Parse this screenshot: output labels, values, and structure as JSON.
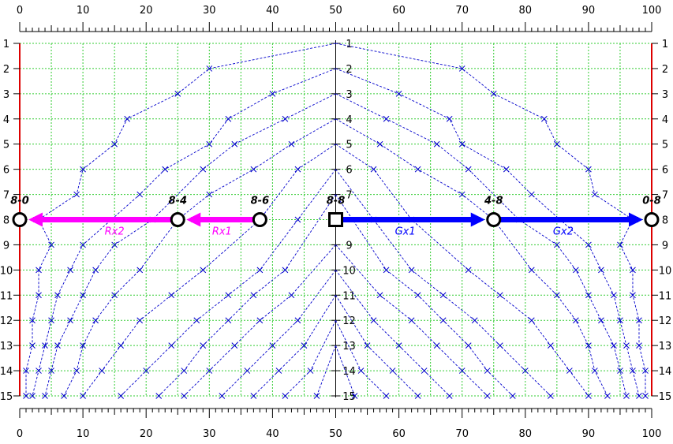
{
  "chart_data": {
    "type": "diagram",
    "x_axis": {
      "ticks": [
        0,
        10,
        20,
        30,
        40,
        50,
        60,
        70,
        80,
        90,
        100
      ],
      "range": [
        0,
        100
      ]
    },
    "y_axis": {
      "ticks": [
        1,
        2,
        3,
        4,
        5,
        6,
        7,
        8,
        9,
        10,
        11,
        12,
        13,
        14,
        15
      ],
      "range": [
        1,
        15
      ]
    },
    "grid": true,
    "colors": {
      "grid": "#33cc33",
      "curve": "#0000cc",
      "gx_arrow": "#0000ff",
      "rx_arrow": "#ff00ff",
      "boundary": "#dd0000",
      "node": "#000000"
    },
    "curves": [
      {
        "points": [
          [
            50,
            1
          ],
          [
            30,
            2
          ],
          [
            25,
            3
          ],
          [
            17,
            4
          ],
          [
            15,
            5
          ],
          [
            10,
            6
          ],
          [
            9,
            7
          ],
          [
            3,
            8
          ],
          [
            5,
            9
          ],
          [
            3,
            10
          ],
          [
            3,
            11
          ],
          [
            2,
            12
          ],
          [
            2,
            13
          ],
          [
            1,
            14
          ],
          [
            1,
            15
          ]
        ]
      },
      {
        "points": [
          [
            50,
            1
          ],
          [
            70,
            2
          ],
          [
            75,
            3
          ],
          [
            83,
            4
          ],
          [
            85,
            5
          ],
          [
            90,
            6
          ],
          [
            91,
            7
          ],
          [
            97,
            8
          ],
          [
            95,
            9
          ],
          [
            97,
            10
          ],
          [
            97,
            11
          ],
          [
            98,
            12
          ],
          [
            98,
            13
          ],
          [
            99,
            14
          ],
          [
            99,
            15
          ]
        ]
      },
      {
        "points": [
          [
            50,
            2
          ],
          [
            40,
            3
          ],
          [
            33,
            4
          ],
          [
            30,
            5
          ],
          [
            23,
            6
          ],
          [
            19,
            7
          ],
          [
            10,
            9
          ],
          [
            8,
            10
          ],
          [
            6,
            11
          ],
          [
            5,
            12
          ],
          [
            4,
            13
          ],
          [
            3,
            14
          ],
          [
            2,
            15
          ]
        ]
      },
      {
        "points": [
          [
            50,
            2
          ],
          [
            60,
            3
          ],
          [
            68,
            4
          ],
          [
            70,
            5
          ],
          [
            77,
            6
          ],
          [
            81,
            7
          ],
          [
            90,
            9
          ],
          [
            92,
            10
          ],
          [
            94,
            11
          ],
          [
            95,
            12
          ],
          [
            96,
            13
          ],
          [
            97,
            14
          ],
          [
            98,
            15
          ]
        ]
      },
      {
        "points": [
          [
            50,
            3
          ],
          [
            42,
            4
          ],
          [
            34,
            5
          ],
          [
            29,
            6
          ],
          [
            21,
            8
          ],
          [
            15,
            9
          ],
          [
            12,
            10
          ],
          [
            10,
            11
          ],
          [
            8,
            12
          ],
          [
            6,
            13
          ],
          [
            5,
            14
          ],
          [
            4,
            15
          ]
        ]
      },
      {
        "points": [
          [
            50,
            3
          ],
          [
            58,
            4
          ],
          [
            66,
            5
          ],
          [
            71,
            6
          ],
          [
            79,
            8
          ],
          [
            85,
            9
          ],
          [
            88,
            10
          ],
          [
            90,
            11
          ],
          [
            92,
            12
          ],
          [
            94,
            13
          ],
          [
            95,
            14
          ],
          [
            96,
            15
          ]
        ]
      },
      {
        "points": [
          [
            50,
            4
          ],
          [
            43,
            5
          ],
          [
            37,
            6
          ],
          [
            30,
            7
          ],
          [
            25,
            8
          ],
          [
            19,
            10
          ],
          [
            15,
            11
          ],
          [
            12,
            12
          ],
          [
            10,
            13
          ],
          [
            9,
            14
          ],
          [
            7,
            15
          ]
        ]
      },
      {
        "points": [
          [
            50,
            4
          ],
          [
            57,
            5
          ],
          [
            63,
            6
          ],
          [
            70,
            7
          ],
          [
            75,
            8
          ],
          [
            81,
            10
          ],
          [
            85,
            11
          ],
          [
            88,
            12
          ],
          [
            90,
            13
          ],
          [
            91,
            14
          ],
          [
            93,
            15
          ]
        ]
      },
      {
        "points": [
          [
            50,
            5
          ],
          [
            44,
            6
          ],
          [
            38,
            8
          ],
          [
            29,
            10
          ],
          [
            24,
            11
          ],
          [
            19,
            12
          ],
          [
            16,
            13
          ],
          [
            13,
            14
          ],
          [
            10,
            15
          ]
        ]
      },
      {
        "points": [
          [
            50,
            5
          ],
          [
            56,
            6
          ],
          [
            62,
            8
          ],
          [
            71,
            10
          ],
          [
            76,
            11
          ],
          [
            81,
            12
          ],
          [
            84,
            13
          ],
          [
            87,
            14
          ],
          [
            90,
            15
          ]
        ]
      },
      {
        "points": [
          [
            50,
            6
          ],
          [
            44,
            8
          ],
          [
            38,
            10
          ],
          [
            33,
            11
          ],
          [
            28,
            12
          ],
          [
            24,
            13
          ],
          [
            20,
            14
          ],
          [
            16,
            15
          ]
        ]
      },
      {
        "points": [
          [
            50,
            6
          ],
          [
            56,
            8
          ],
          [
            62,
            10
          ],
          [
            67,
            11
          ],
          [
            72,
            12
          ],
          [
            76,
            13
          ],
          [
            80,
            14
          ],
          [
            84,
            15
          ]
        ]
      },
      {
        "points": [
          [
            50,
            7
          ],
          [
            42,
            10
          ],
          [
            37,
            11
          ],
          [
            33,
            12
          ],
          [
            29,
            13
          ],
          [
            26,
            14
          ],
          [
            22,
            15
          ]
        ]
      },
      {
        "points": [
          [
            50,
            7
          ],
          [
            58,
            10
          ],
          [
            63,
            11
          ],
          [
            67,
            12
          ],
          [
            71,
            13
          ],
          [
            74,
            14
          ],
          [
            78,
            15
          ]
        ]
      },
      {
        "points": [
          [
            50,
            9
          ],
          [
            43,
            11
          ],
          [
            38,
            12
          ],
          [
            34,
            13
          ],
          [
            30,
            14
          ],
          [
            26,
            15
          ]
        ]
      },
      {
        "points": [
          [
            50,
            9
          ],
          [
            57,
            11
          ],
          [
            62,
            12
          ],
          [
            66,
            13
          ],
          [
            70,
            14
          ],
          [
            74,
            15
          ]
        ]
      },
      {
        "points": [
          [
            50,
            10
          ],
          [
            44,
            12
          ],
          [
            40,
            13
          ],
          [
            36,
            14
          ],
          [
            32,
            15
          ]
        ]
      },
      {
        "points": [
          [
            50,
            10
          ],
          [
            56,
            12
          ],
          [
            60,
            13
          ],
          [
            64,
            14
          ],
          [
            68,
            15
          ]
        ]
      },
      {
        "points": [
          [
            50,
            11
          ],
          [
            45,
            13
          ],
          [
            41,
            14
          ],
          [
            37,
            15
          ]
        ]
      },
      {
        "points": [
          [
            50,
            11
          ],
          [
            55,
            13
          ],
          [
            59,
            14
          ],
          [
            63,
            15
          ]
        ]
      },
      {
        "points": [
          [
            50,
            12
          ],
          [
            46,
            14
          ],
          [
            42,
            15
          ]
        ]
      },
      {
        "points": [
          [
            50,
            12
          ],
          [
            54,
            14
          ],
          [
            58,
            15
          ]
        ]
      },
      {
        "points": [
          [
            50,
            13
          ],
          [
            47,
            15
          ]
        ]
      },
      {
        "points": [
          [
            50,
            13
          ],
          [
            53,
            15
          ]
        ]
      }
    ],
    "nodes": [
      {
        "label": "8-0",
        "x": 0,
        "y": 8,
        "shape": "circle"
      },
      {
        "label": "8-4",
        "x": 25,
        "y": 8,
        "shape": "circle"
      },
      {
        "label": "8-6",
        "x": 38,
        "y": 8,
        "shape": "circle"
      },
      {
        "label": "8-8",
        "x": 50,
        "y": 8,
        "shape": "square"
      },
      {
        "label": "4-8",
        "x": 75,
        "y": 8,
        "shape": "circle"
      },
      {
        "label": "0-8",
        "x": 100,
        "y": 8,
        "shape": "circle"
      }
    ],
    "arrows": [
      {
        "label": "Rx2",
        "from": 25,
        "to": 0,
        "y": 8,
        "color": "#ff00ff",
        "label_x": 15
      },
      {
        "label": "Rx1",
        "from": 38,
        "to": 25,
        "y": 8,
        "color": "#ff00ff",
        "label_x": 32
      },
      {
        "label": "Gx1",
        "from": 50,
        "to": 75,
        "y": 8,
        "color": "#0000ff",
        "label_x": 61
      },
      {
        "label": "Gx2",
        "from": 75,
        "to": 100,
        "y": 8,
        "color": "#0000ff",
        "label_x": 86
      }
    ]
  }
}
